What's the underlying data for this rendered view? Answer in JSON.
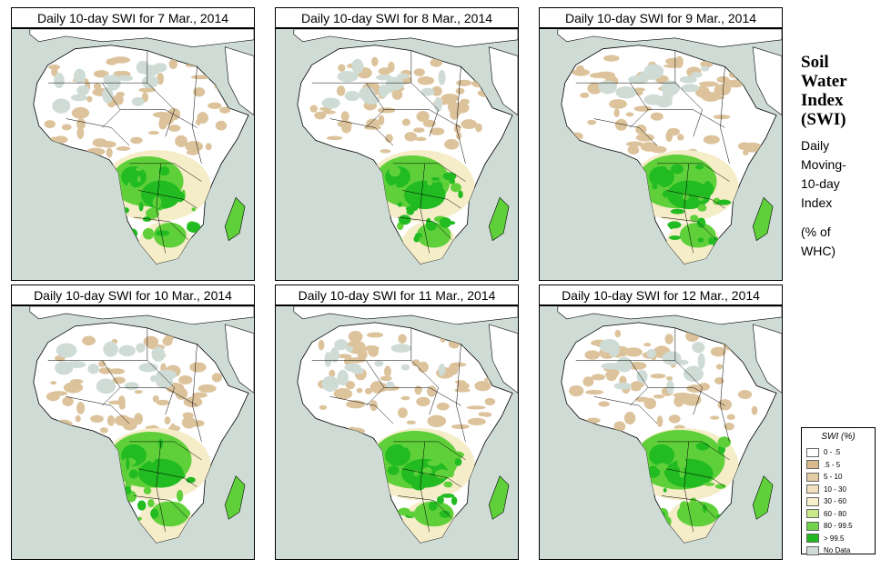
{
  "panels": [
    {
      "title": "Daily 10-day SWI for  7 Mar., 2014"
    },
    {
      "title": "Daily 10-day SWI for  8 Mar., 2014"
    },
    {
      "title": "Daily 10-day SWI for  9 Mar., 2014"
    },
    {
      "title": "Daily 10-day SWI for  10 Mar., 2014"
    },
    {
      "title": "Daily 10-day SWI for  11 Mar., 2014"
    },
    {
      "title": "Daily 10-day SWI for  12 Mar., 2014"
    }
  ],
  "side_title": {
    "line1": "Soil",
    "line2": "Water",
    "line3": "Index",
    "line4": "(SWI)"
  },
  "side_desc": {
    "line1": "Daily",
    "line2": "Moving-",
    "line3": "10-day",
    "line4": "Index",
    "line5": "(% of",
    "line6": " WHC)"
  },
  "legend": {
    "title": "SWI (%)",
    "items": [
      {
        "label": "0 - .5",
        "color": "#ffffff"
      },
      {
        "label": ".5 - 5",
        "color": "#d8b98c"
      },
      {
        "label": "5 - 10",
        "color": "#e6cca6"
      },
      {
        "label": "10 - 30",
        "color": "#f1dfbd"
      },
      {
        "label": "30 - 60",
        "color": "#f7f0cc"
      },
      {
        "label": "60 - 80",
        "color": "#c8e88a"
      },
      {
        "label": "80 - 99.5",
        "color": "#6fd24a"
      },
      {
        "label": "> 99.5",
        "color": "#1fb81f"
      },
      {
        "label": "No Data",
        "color": "#cfdcd6"
      }
    ]
  },
  "colors": {
    "ocean": "#cfdcd6",
    "land": "#ffffff",
    "dry": "#dcc39c",
    "moist": "#f5ecc8",
    "wet": "#5fd03a",
    "very_wet": "#22bb22"
  }
}
